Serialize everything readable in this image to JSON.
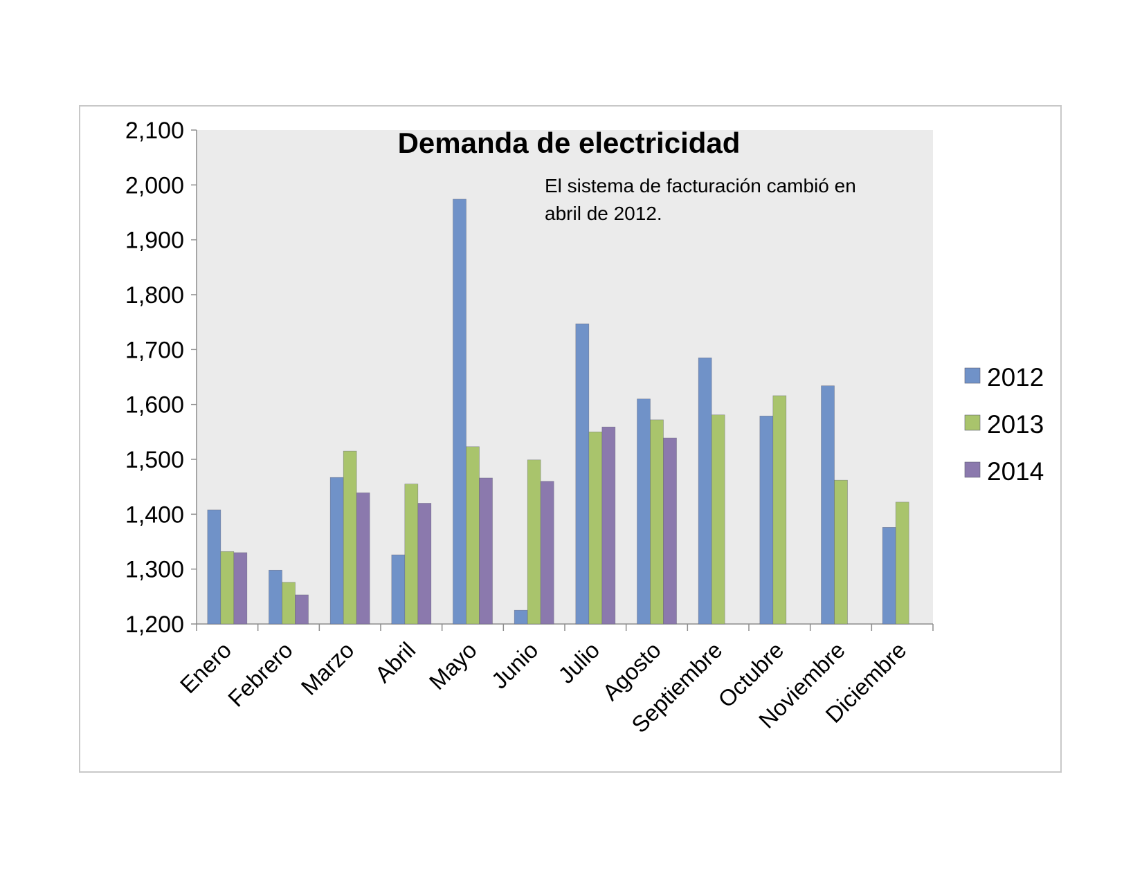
{
  "chart_data": {
    "type": "bar",
    "title": "Demanda de electricidad",
    "annotation": [
      "El sistema de facturación cambió en",
      "abril de 2012."
    ],
    "categories": [
      "Enero",
      "Febrero",
      "Marzo",
      "Abril",
      "Mayo",
      "Junio",
      "Julio",
      "Agosto",
      "Septiembre",
      "Octubre",
      "Noviembre",
      "Diciembre"
    ],
    "series": [
      {
        "name": "2012",
        "color": "#7092c8",
        "values": [
          1408,
          1298,
          1467,
          1326,
          1974,
          1225,
          1747,
          1610,
          1685,
          1579,
          1634,
          1376
        ]
      },
      {
        "name": "2013",
        "color": "#a9c46c",
        "values": [
          1332,
          1276,
          1515,
          1455,
          1523,
          1499,
          1550,
          1572,
          1581,
          1616,
          1462,
          1422
        ]
      },
      {
        "name": "2014",
        "color": "#8b79ad",
        "values": [
          1330,
          1253,
          1439,
          1420,
          1466,
          1460,
          1559,
          1539,
          null,
          null,
          null,
          null
        ]
      }
    ],
    "ylim": [
      1200,
      2100
    ],
    "yticks": [
      "1,200",
      "1,300",
      "1,400",
      "1,500",
      "1,600",
      "1,700",
      "1,800",
      "1,900",
      "2,000",
      "2,100"
    ],
    "xlabel": "",
    "ylabel": "",
    "grid": false,
    "legend_position": "right",
    "plot_background": "#ebebeb"
  }
}
